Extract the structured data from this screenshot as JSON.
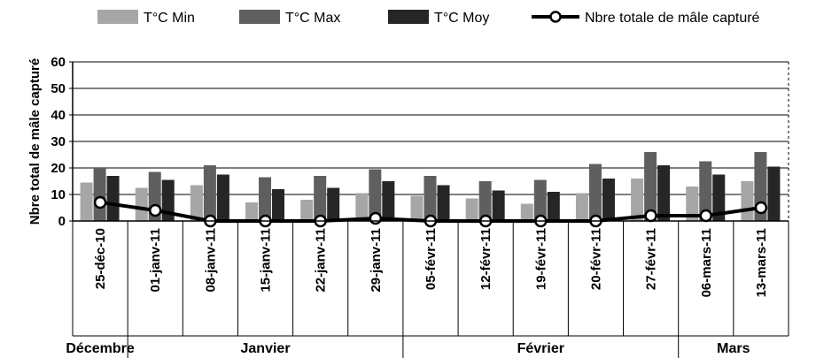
{
  "chart_data": {
    "type": "bar",
    "title": "",
    "xlabel": "",
    "ylabel": "Nbre total de mâle capturé",
    "ylim": [
      0,
      60
    ],
    "yticks": [
      "0",
      "10",
      "20",
      "30",
      "40",
      "50",
      "60"
    ],
    "grid": true,
    "legend_position": "top",
    "categories": [
      "25-déc-10",
      "01-janv-11",
      "08-janv-11",
      "15-janv-11",
      "22-janv-11",
      "29-janv-11",
      "05-févr-11",
      "12-févr-11",
      "19-févr-11",
      "20-févr-11",
      "27-févr-11",
      "06-mars-11",
      "13-mars-11"
    ],
    "months": [
      {
        "label": "Décembre",
        "count": 1
      },
      {
        "label": "Janvier",
        "count": 5
      },
      {
        "label": "Février",
        "count": 5
      },
      {
        "label": "Mars",
        "count": 2
      }
    ],
    "series": [
      {
        "name": "T°C Min",
        "type": "bar",
        "color": "#a6a6a6",
        "values": [
          14.5,
          12.5,
          13.5,
          7,
          8,
          10.5,
          9.5,
          8.5,
          6.5,
          10.5,
          16,
          13,
          15
        ]
      },
      {
        "name": "T°C Max",
        "type": "bar",
        "color": "#5f5f5f",
        "values": [
          20,
          18.5,
          21,
          16.5,
          17,
          19.5,
          17,
          15,
          15.5,
          21.5,
          26,
          22.5,
          26
        ]
      },
      {
        "name": "T°C Moy",
        "type": "bar",
        "color": "#262626",
        "values": [
          17,
          15.5,
          17.5,
          12,
          12.5,
          15,
          13.5,
          11.5,
          11,
          16,
          21,
          17.5,
          20.5
        ]
      },
      {
        "name": "Nbre totale de mâle capturé",
        "type": "line",
        "color": "#000000",
        "values": [
          7,
          4,
          0,
          0,
          0,
          1,
          0,
          0,
          0,
          0,
          2,
          2,
          5
        ]
      }
    ]
  }
}
